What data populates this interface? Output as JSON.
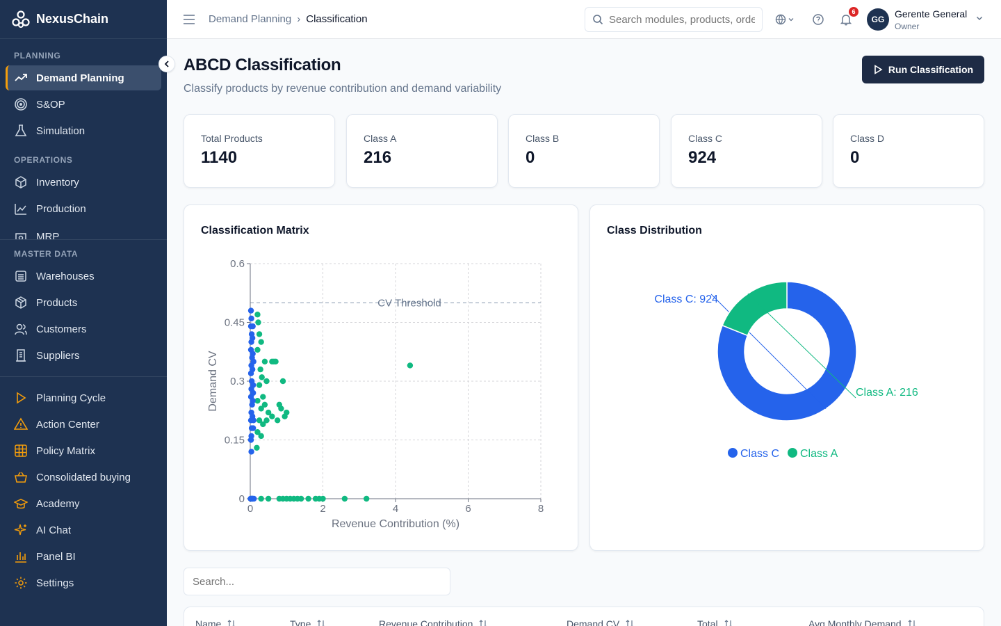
{
  "brand": {
    "name": "NexusChain"
  },
  "sidebar": {
    "sections": [
      {
        "label": "PLANNING"
      },
      {
        "label": "OPERATIONS"
      },
      {
        "label": "MASTER DATA"
      }
    ],
    "items": [
      {
        "label": "Demand Planning",
        "icon": "trend-icon"
      },
      {
        "label": "S&OP",
        "icon": "target-icon"
      },
      {
        "label": "Simulation",
        "icon": "flask-icon"
      },
      {
        "label": "Inventory",
        "icon": "box-icon"
      },
      {
        "label": "Production",
        "icon": "factory-icon"
      },
      {
        "label": "MRP",
        "icon": "cog-box-icon"
      },
      {
        "label": "Warehouses",
        "icon": "warehouse-icon"
      },
      {
        "label": "Products",
        "icon": "package-icon"
      },
      {
        "label": "Customers",
        "icon": "users-icon"
      },
      {
        "label": "Suppliers",
        "icon": "building-icon"
      },
      {
        "label": "Planning Cycle",
        "icon": "play-icon"
      },
      {
        "label": "Action Center",
        "icon": "warning-icon"
      },
      {
        "label": "Policy Matrix",
        "icon": "grid-icon"
      },
      {
        "label": "Consolidated buying",
        "icon": "basket-icon"
      },
      {
        "label": "Academy",
        "icon": "graduation-icon"
      },
      {
        "label": "AI Chat",
        "icon": "sparkle-icon"
      },
      {
        "label": "Panel BI",
        "icon": "bar-chart-icon"
      },
      {
        "label": "Settings",
        "icon": "gear-icon"
      }
    ]
  },
  "topbar": {
    "breadcrumb": [
      "Demand Planning",
      "Classification"
    ],
    "search_placeholder": "Search modules, products, orders...",
    "notifications": "6",
    "user_initials": "GG",
    "user_name": "Gerente General",
    "user_role": "Owner"
  },
  "page": {
    "title": "ABCD Classification",
    "subtitle": "Classify products by revenue contribution and demand variability",
    "run_button": "Run Classification"
  },
  "stats": [
    {
      "label": "Total Products",
      "value": "1140"
    },
    {
      "label": "Class A",
      "value": "216"
    },
    {
      "label": "Class B",
      "value": "0"
    },
    {
      "label": "Class C",
      "value": "924"
    },
    {
      "label": "Class D",
      "value": "0"
    }
  ],
  "matrix": {
    "title": "Classification Matrix",
    "threshold_label": "CV Threshold"
  },
  "distribution": {
    "title": "Class Distribution"
  },
  "table": {
    "search_placeholder": "Search...",
    "columns": [
      "Name",
      "Type",
      "Revenue Contribution",
      "Demand CV",
      "Total",
      "Avg Monthly Demand"
    ]
  },
  "colors": {
    "class_a": "#10b981",
    "class_c": "#2563eb",
    "sidebar_bg": "#1e3251",
    "accent": "#f59e0b"
  },
  "chart_data": [
    {
      "type": "scatter",
      "title": "Classification Matrix",
      "xlabel": "Revenue Contribution (%)",
      "ylabel": "Demand CV",
      "xlim": [
        0,
        8
      ],
      "ylim": [
        0,
        0.6
      ],
      "xticks": [
        "0",
        "2",
        "4",
        "6",
        "8"
      ],
      "yticks": [
        "0",
        "0.15",
        "0.3",
        "0.45",
        "0.6"
      ],
      "threshold": {
        "label": "CV Threshold",
        "y": 0.5
      },
      "grid": true,
      "series": [
        {
          "color": "#10b981",
          "points": [
            [
              4.4,
              0.34
            ],
            [
              0.6,
              0.35
            ],
            [
              0.65,
              0.35
            ],
            [
              0.7,
              0.35
            ],
            [
              0.4,
              0.35
            ],
            [
              0.9,
              0.3
            ],
            [
              0.45,
              0.3
            ],
            [
              0.8,
              0.24
            ],
            [
              0.85,
              0.23
            ],
            [
              1.0,
              0.22
            ],
            [
              0.95,
              0.21
            ],
            [
              0.5,
              0.22
            ],
            [
              0.45,
              0.2
            ],
            [
              0.75,
              0.2
            ],
            [
              0.6,
              0.21
            ],
            [
              0.2,
              0.47
            ],
            [
              0.22,
              0.45
            ],
            [
              0.25,
              0.42
            ],
            [
              0.3,
              0.4
            ],
            [
              0.2,
              0.38
            ],
            [
              0.28,
              0.33
            ],
            [
              0.32,
              0.31
            ],
            [
              0.25,
              0.29
            ],
            [
              0.35,
              0.26
            ],
            [
              0.2,
              0.25
            ],
            [
              0.3,
              0.23
            ],
            [
              0.4,
              0.24
            ],
            [
              0.25,
              0.2
            ],
            [
              0.35,
              0.19
            ],
            [
              0.2,
              0.17
            ],
            [
              0.3,
              0.16
            ],
            [
              0.18,
              0.13
            ],
            [
              0.05,
              0
            ],
            [
              0.3,
              0
            ],
            [
              0.5,
              0
            ],
            [
              0.8,
              0
            ],
            [
              0.9,
              0
            ],
            [
              1.0,
              0
            ],
            [
              1.1,
              0
            ],
            [
              1.2,
              0
            ],
            [
              1.3,
              0
            ],
            [
              1.4,
              0
            ],
            [
              1.6,
              0
            ],
            [
              1.8,
              0
            ],
            [
              1.9,
              0
            ],
            [
              2.0,
              0
            ],
            [
              2.6,
              0
            ],
            [
              3.2,
              0
            ]
          ]
        },
        {
          "color": "#2563eb",
          "points": [
            [
              0.02,
              0.48
            ],
            [
              0.03,
              0.46
            ],
            [
              0.02,
              0.44
            ],
            [
              0.04,
              0.42
            ],
            [
              0.03,
              0.4
            ],
            [
              0.02,
              0.38
            ],
            [
              0.05,
              0.36
            ],
            [
              0.03,
              0.34
            ],
            [
              0.02,
              0.32
            ],
            [
              0.04,
              0.3
            ],
            [
              0.03,
              0.28
            ],
            [
              0.02,
              0.26
            ],
            [
              0.05,
              0.24
            ],
            [
              0.03,
              0.22
            ],
            [
              0.02,
              0.2
            ],
            [
              0.04,
              0.18
            ],
            [
              0.03,
              0.16
            ],
            [
              0.02,
              0.15
            ],
            [
              0.03,
              0.12
            ],
            [
              0.06,
              0.41
            ],
            [
              0.07,
              0.37
            ],
            [
              0.06,
              0.33
            ],
            [
              0.08,
              0.29
            ],
            [
              0.07,
              0.25
            ],
            [
              0.06,
              0.21
            ],
            [
              0.08,
              0.18
            ],
            [
              0.07,
              0.44
            ],
            [
              0.09,
              0.35
            ],
            [
              0.08,
              0.27
            ],
            [
              0.09,
              0.2
            ],
            [
              0.01,
              0
            ],
            [
              0.03,
              0
            ],
            [
              0.05,
              0
            ],
            [
              0.07,
              0
            ],
            [
              0.1,
              0
            ]
          ]
        }
      ]
    },
    {
      "type": "pie",
      "title": "Class Distribution",
      "donut": true,
      "slices": [
        {
          "label": "Class C",
          "value": 924,
          "data_label": "Class C: 924",
          "color": "#2563eb"
        },
        {
          "label": "Class A",
          "value": 216,
          "data_label": "Class A: 216",
          "color": "#10b981"
        }
      ],
      "legend": [
        "Class C",
        "Class A"
      ],
      "legend_position": "bottom"
    }
  ]
}
